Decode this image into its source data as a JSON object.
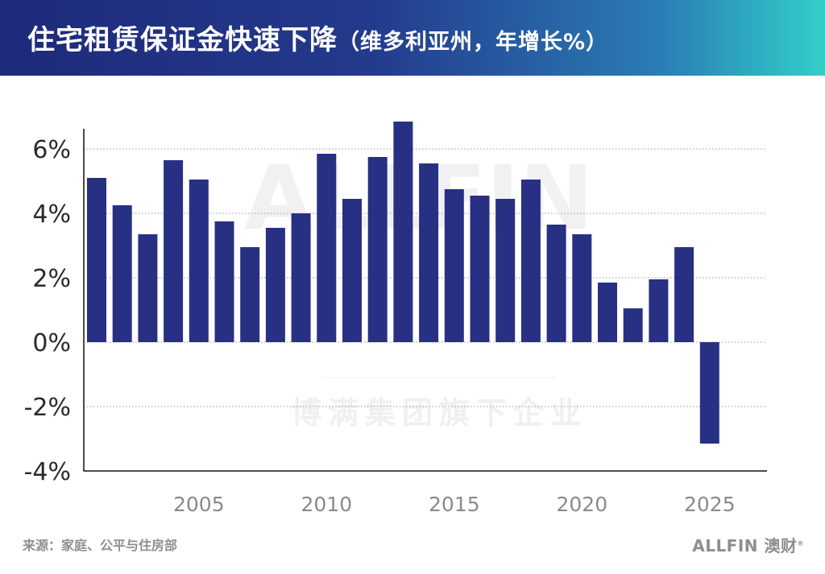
{
  "header": {
    "title": "住宅租赁保证金快速下降",
    "subtitle": "（维多利亚州，年增长%）"
  },
  "chart_data": {
    "type": "bar",
    "title": "住宅租赁保证金快速下降（维多利亚州，年增长%）",
    "xlabel": "",
    "ylabel": "",
    "x": [
      2001,
      2002,
      2003,
      2004,
      2005,
      2006,
      2007,
      2008,
      2009,
      2010,
      2011,
      2012,
      2013,
      2014,
      2015,
      2016,
      2017,
      2018,
      2019,
      2020,
      2021,
      2022,
      2023,
      2024,
      2025
    ],
    "values": [
      5.1,
      4.25,
      3.35,
      5.65,
      5.05,
      3.75,
      2.95,
      3.55,
      4.0,
      5.85,
      4.45,
      5.75,
      6.85,
      5.55,
      4.75,
      4.55,
      4.45,
      5.05,
      3.65,
      3.35,
      1.85,
      1.05,
      1.95,
      2.95,
      -3.15
    ],
    "xticks": [
      "2005",
      "2010",
      "2015",
      "2020",
      "2025"
    ],
    "yticks": [
      "6%",
      "4%",
      "2%",
      "0%",
      "-2%",
      "-4%"
    ],
    "ytick_values": [
      6,
      4,
      2,
      0,
      -2,
      -4
    ],
    "ylim": [
      -4,
      7
    ],
    "grid": true,
    "bar_color": "#283084",
    "watermark": [
      "ALLFIN",
      "博满集团旗下企业"
    ]
  },
  "footer": {
    "source": "来源：家庭、公平与住房部",
    "brand": "ALLFIN 澳财",
    "brand_mark": "®"
  }
}
